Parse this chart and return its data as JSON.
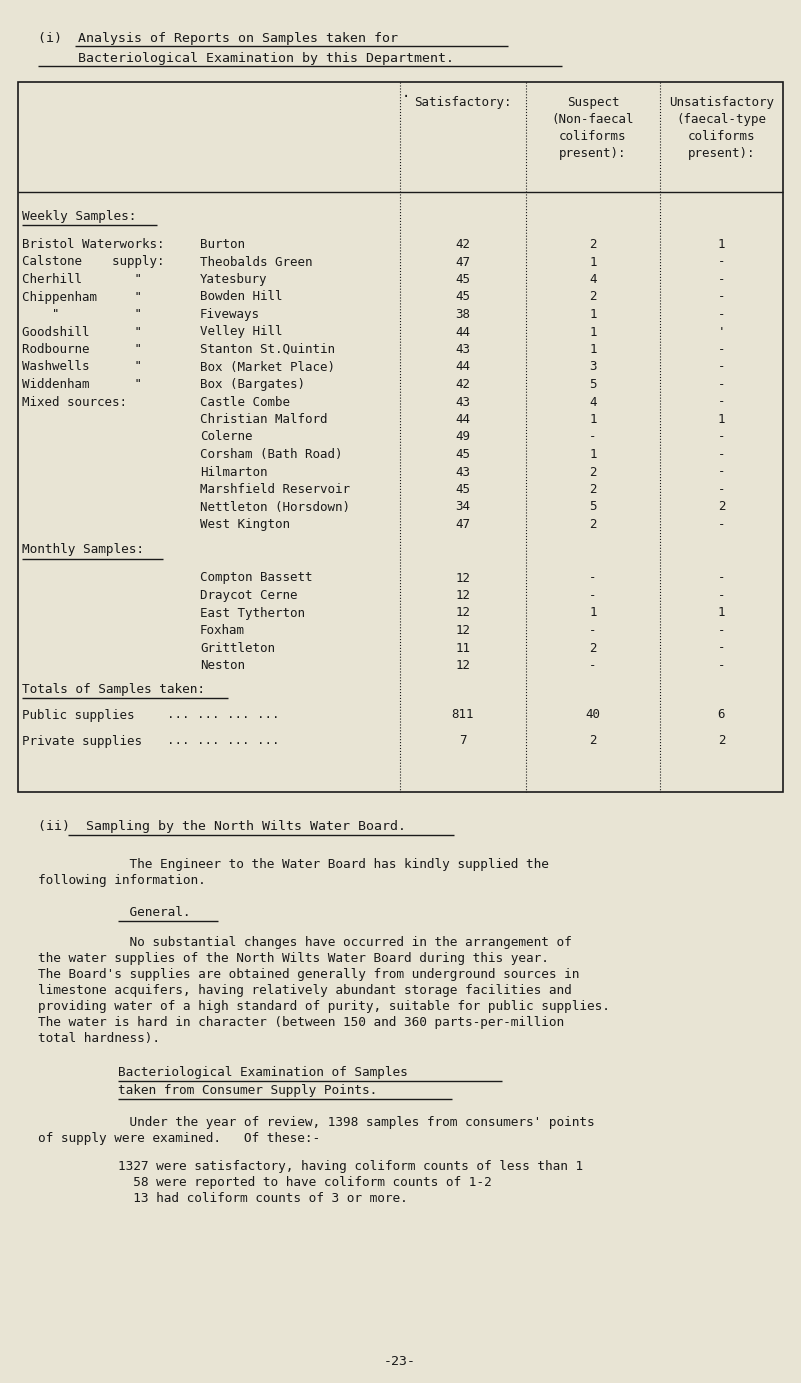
{
  "bg_color": "#e8e4d4",
  "text_color": "#1a1a1a",
  "fig_w": 8.01,
  "fig_h": 13.83,
  "dpi": 100,
  "weekly_rows": [
    [
      "Bristol Waterworks:",
      "Burton",
      "42",
      "2",
      "1"
    ],
    [
      "Calstone    supply:",
      "Theobalds Green",
      "47",
      "1",
      "-"
    ],
    [
      "Cherhill       \"",
      "Yatesbury",
      "45",
      "4",
      "-"
    ],
    [
      "Chippenham     \"",
      "Bowden Hill",
      "45",
      "2",
      "-"
    ],
    [
      "    \"          \"",
      "Fiveways",
      "38",
      "1",
      "-"
    ],
    [
      "Goodshill      \"",
      "Velley Hill",
      "44",
      "1",
      "'"
    ],
    [
      "Rodbourne      \"",
      "Stanton St.Quintin",
      "43",
      "1",
      "-"
    ],
    [
      "Washwells      \"",
      "Box (Market Place)",
      "44",
      "3",
      "-"
    ],
    [
      "Widdenham      \"",
      "Box (Bargates)",
      "42",
      "5",
      "-"
    ],
    [
      "Mixed sources:",
      "Castle Combe",
      "43",
      "4",
      "-"
    ],
    [
      "",
      "Christian Malford",
      "44",
      "1",
      "1"
    ],
    [
      "",
      "Colerne",
      "49",
      "-",
      "-"
    ],
    [
      "",
      "Corsham (Bath Road)",
      "45",
      "1",
      "-"
    ],
    [
      "",
      "Hilmarton",
      "43",
      "2",
      "-"
    ],
    [
      "",
      "Marshfield Reservoir",
      "45",
      "2",
      "-"
    ],
    [
      "",
      "Nettleton (Horsdown)",
      "34",
      "5",
      "2"
    ],
    [
      "",
      "West Kington",
      "47",
      "2",
      "-"
    ]
  ],
  "monthly_rows": [
    [
      "Compton Bassett",
      "12",
      "-",
      "-"
    ],
    [
      "Draycot Cerne",
      "12",
      "-",
      "-"
    ],
    [
      "East Tytherton",
      "12",
      "1",
      "1"
    ],
    [
      "Foxham",
      "12",
      "-",
      "-"
    ],
    [
      "Grittleton",
      "11",
      "2",
      "-"
    ],
    [
      "Neston",
      "12",
      "-",
      "-"
    ]
  ],
  "totals_rows": [
    [
      "Public supplies",
      "... ... ... ...",
      "811",
      "40",
      "6"
    ],
    [
      "Private supplies",
      "... ... ... ...",
      "7",
      "2",
      "2"
    ]
  ],
  "para2_lines": [
    "            No substantial changes have occurred in the arrangement of",
    "the water supplies of the North Wilts Water Board during this year.",
    "The Board's supplies are obtained generally from underground sources in",
    "limestone acquifers, having relatively abundant storage facilities and",
    "providing water of a high standard of purity, suitable for public supplies.",
    "The water is hard in character (between 150 and 360 parts-per-million",
    "total hardness)."
  ]
}
